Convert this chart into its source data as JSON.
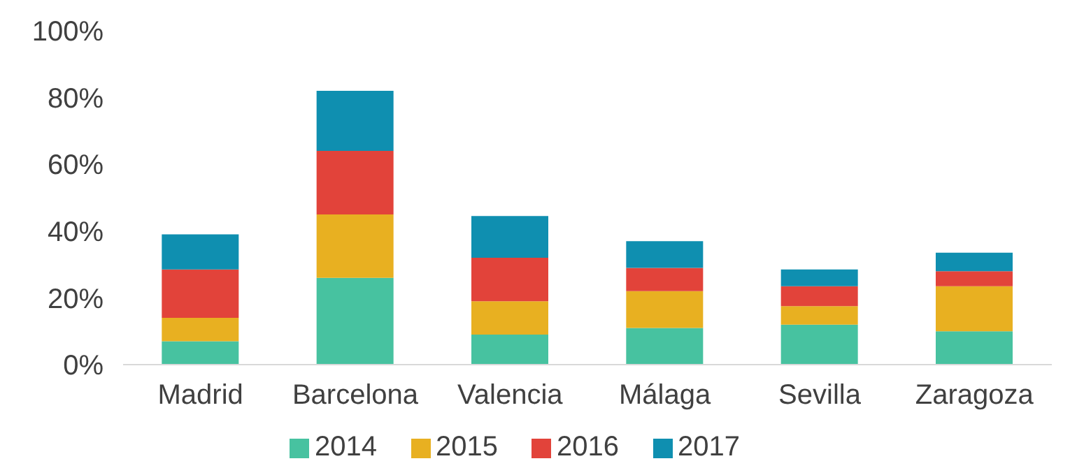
{
  "chart_data": {
    "type": "bar",
    "stacked": true,
    "categories": [
      "Madrid",
      "Barcelona",
      "Valencia",
      "Málaga",
      "Sevilla",
      "Zaragoza"
    ],
    "series": [
      {
        "name": "2014",
        "color": "#47c2a0",
        "values": [
          7,
          26,
          9,
          11,
          12,
          10
        ]
      },
      {
        "name": "2015",
        "color": "#e8b021",
        "values": [
          7,
          19,
          10,
          11,
          5.5,
          13.5
        ]
      },
      {
        "name": "2016",
        "color": "#e2433a",
        "values": [
          14.5,
          19,
          13,
          7,
          6,
          4.5
        ]
      },
      {
        "name": "2017",
        "color": "#0f8fb0",
        "values": [
          10.5,
          18,
          12.5,
          8,
          5,
          5.5
        ]
      }
    ],
    "ylim": [
      0,
      100
    ],
    "yticks": [
      {
        "value": 0,
        "label": "0%"
      },
      {
        "value": 20,
        "label": "20%"
      },
      {
        "value": 40,
        "label": "40%"
      },
      {
        "value": 60,
        "label": "60%"
      },
      {
        "value": 80,
        "label": "80%"
      },
      {
        "value": 100,
        "label": "100%"
      }
    ],
    "grid": false,
    "legend": "bottom"
  }
}
